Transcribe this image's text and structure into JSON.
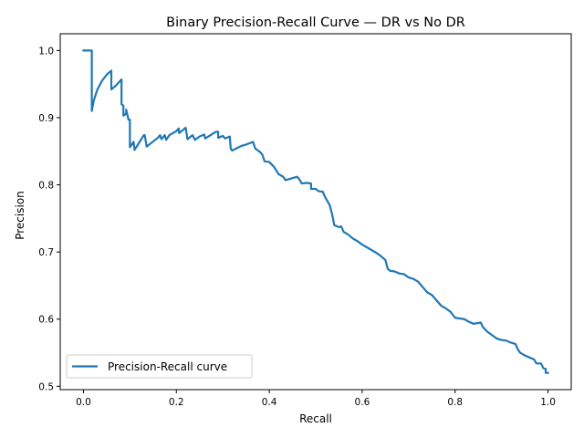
{
  "chart_data": {
    "type": "line",
    "title": "Binary Precision-Recall Curve — DR vs No DR",
    "xlabel": "Recall",
    "ylabel": "Precision",
    "xlim": [
      -0.05,
      1.05
    ],
    "ylim": [
      0.495,
      1.025
    ],
    "xticks": [
      0.0,
      0.2,
      0.4,
      0.6,
      0.8,
      1.0
    ],
    "xtick_labels": [
      "0.0",
      "0.2",
      "0.4",
      "0.6",
      "0.8",
      "1.0"
    ],
    "yticks": [
      0.5,
      0.6,
      0.7,
      0.8,
      0.9,
      1.0
    ],
    "ytick_labels": [
      "0.5",
      "0.6",
      "0.7",
      "0.8",
      "0.9",
      "1.0"
    ],
    "grid": false,
    "legend_position": "lower-left",
    "series": [
      {
        "name": "Precision-Recall curve",
        "color": "#1f77b4",
        "points": [
          [
            0.0,
            1.0
          ],
          [
            0.018,
            1.0
          ],
          [
            0.018,
            0.91
          ],
          [
            0.022,
            0.925
          ],
          [
            0.03,
            0.942
          ],
          [
            0.04,
            0.955
          ],
          [
            0.05,
            0.964
          ],
          [
            0.06,
            0.97
          ],
          [
            0.06,
            0.942
          ],
          [
            0.07,
            0.948
          ],
          [
            0.082,
            0.957
          ],
          [
            0.082,
            0.92
          ],
          [
            0.086,
            0.918
          ],
          [
            0.086,
            0.903
          ],
          [
            0.092,
            0.906
          ],
          [
            0.092,
            0.912
          ],
          [
            0.097,
            0.897
          ],
          [
            0.1,
            0.897
          ],
          [
            0.1,
            0.856
          ],
          [
            0.104,
            0.86
          ],
          [
            0.108,
            0.864
          ],
          [
            0.11,
            0.852
          ],
          [
            0.13,
            0.874
          ],
          [
            0.132,
            0.874
          ],
          [
            0.136,
            0.857
          ],
          [
            0.16,
            0.87
          ],
          [
            0.165,
            0.874
          ],
          [
            0.168,
            0.868
          ],
          [
            0.175,
            0.874
          ],
          [
            0.178,
            0.867
          ],
          [
            0.185,
            0.874
          ],
          [
            0.2,
            0.88
          ],
          [
            0.205,
            0.884
          ],
          [
            0.206,
            0.877
          ],
          [
            0.213,
            0.881
          ],
          [
            0.22,
            0.885
          ],
          [
            0.224,
            0.868
          ],
          [
            0.235,
            0.874
          ],
          [
            0.24,
            0.867
          ],
          [
            0.25,
            0.872
          ],
          [
            0.26,
            0.875
          ],
          [
            0.262,
            0.869
          ],
          [
            0.285,
            0.879
          ],
          [
            0.29,
            0.879
          ],
          [
            0.29,
            0.87
          ],
          [
            0.3,
            0.873
          ],
          [
            0.305,
            0.869
          ],
          [
            0.315,
            0.872
          ],
          [
            0.317,
            0.854
          ],
          [
            0.32,
            0.851
          ],
          [
            0.34,
            0.858
          ],
          [
            0.35,
            0.86
          ],
          [
            0.365,
            0.864
          ],
          [
            0.37,
            0.854
          ],
          [
            0.38,
            0.849
          ],
          [
            0.385,
            0.845
          ],
          [
            0.39,
            0.835
          ],
          [
            0.4,
            0.834
          ],
          [
            0.41,
            0.827
          ],
          [
            0.42,
            0.816
          ],
          [
            0.43,
            0.812
          ],
          [
            0.435,
            0.807
          ],
          [
            0.445,
            0.809
          ],
          [
            0.46,
            0.812
          ],
          [
            0.465,
            0.808
          ],
          [
            0.47,
            0.802
          ],
          [
            0.48,
            0.803
          ],
          [
            0.49,
            0.802
          ],
          [
            0.49,
            0.794
          ],
          [
            0.5,
            0.794
          ],
          [
            0.505,
            0.791
          ],
          [
            0.51,
            0.79
          ],
          [
            0.515,
            0.79
          ],
          [
            0.52,
            0.782
          ],
          [
            0.53,
            0.77
          ],
          [
            0.535,
            0.757
          ],
          [
            0.54,
            0.74
          ],
          [
            0.55,
            0.737
          ],
          [
            0.555,
            0.738
          ],
          [
            0.56,
            0.73
          ],
          [
            0.57,
            0.726
          ],
          [
            0.58,
            0.72
          ],
          [
            0.59,
            0.716
          ],
          [
            0.6,
            0.711
          ],
          [
            0.61,
            0.707
          ],
          [
            0.62,
            0.703
          ],
          [
            0.63,
            0.699
          ],
          [
            0.64,
            0.694
          ],
          [
            0.65,
            0.688
          ],
          [
            0.655,
            0.675
          ],
          [
            0.66,
            0.672
          ],
          [
            0.67,
            0.671
          ],
          [
            0.68,
            0.668
          ],
          [
            0.69,
            0.667
          ],
          [
            0.7,
            0.662
          ],
          [
            0.71,
            0.66
          ],
          [
            0.72,
            0.656
          ],
          [
            0.73,
            0.648
          ],
          [
            0.74,
            0.64
          ],
          [
            0.75,
            0.636
          ],
          [
            0.76,
            0.628
          ],
          [
            0.77,
            0.62
          ],
          [
            0.78,
            0.616
          ],
          [
            0.79,
            0.611
          ],
          [
            0.8,
            0.602
          ],
          [
            0.81,
            0.601
          ],
          [
            0.82,
            0.6
          ],
          [
            0.83,
            0.596
          ],
          [
            0.84,
            0.593
          ],
          [
            0.855,
            0.595
          ],
          [
            0.86,
            0.588
          ],
          [
            0.87,
            0.581
          ],
          [
            0.88,
            0.576
          ],
          [
            0.89,
            0.571
          ],
          [
            0.9,
            0.569
          ],
          [
            0.91,
            0.568
          ],
          [
            0.92,
            0.565
          ],
          [
            0.93,
            0.563
          ],
          [
            0.935,
            0.555
          ],
          [
            0.94,
            0.55
          ],
          [
            0.95,
            0.546
          ],
          [
            0.96,
            0.543
          ],
          [
            0.97,
            0.54
          ],
          [
            0.975,
            0.534
          ],
          [
            0.985,
            0.534
          ],
          [
            0.99,
            0.527
          ],
          [
            0.995,
            0.526
          ],
          [
            0.995,
            0.52
          ],
          [
            1.0,
            0.52
          ]
        ]
      }
    ]
  }
}
